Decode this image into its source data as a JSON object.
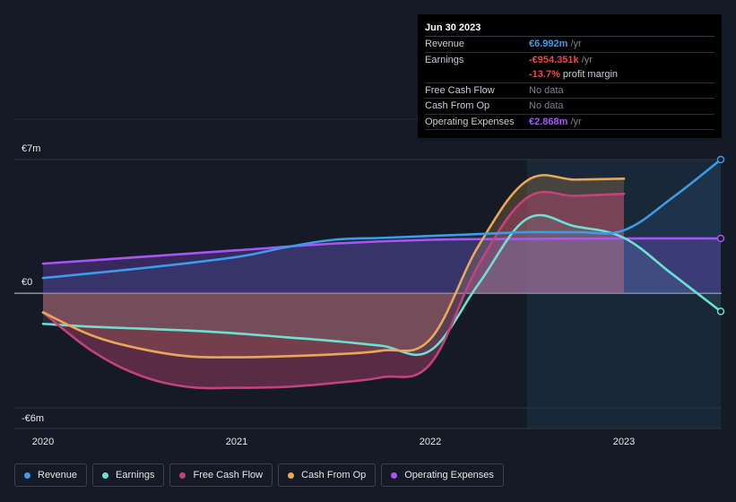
{
  "tooltip": {
    "date": "Jun 30 2023",
    "rows": [
      {
        "label": "Revenue",
        "value": "€6.992m",
        "suffix": " /yr"
      },
      {
        "label": "Earnings",
        "value": "-€954.351k",
        "suffix": " /yr"
      },
      {
        "label": "",
        "value": "-13.7%",
        "suffix": " profit margin"
      },
      {
        "label": "Free Cash Flow",
        "value": "No data",
        "suffix": ""
      },
      {
        "label": "Cash From Op",
        "value": "No data",
        "suffix": ""
      },
      {
        "label": "Operating Expenses",
        "value": "€2.868m",
        "suffix": " /yr"
      }
    ]
  },
  "legend": [
    {
      "label": "Revenue",
      "color": "#3d9be9"
    },
    {
      "label": "Earnings",
      "color": "#6ee0d0"
    },
    {
      "label": "Free Cash Flow",
      "color": "#c2437b"
    },
    {
      "label": "Cash From Op",
      "color": "#e8a857"
    },
    {
      "label": "Operating Expenses",
      "color": "#a855f7"
    }
  ],
  "chart_data": {
    "type": "area",
    "title": "",
    "xlabel": "",
    "ylabel": "",
    "y_tick_labels": [
      "€7m",
      "€0",
      "-€6m"
    ],
    "y_ticks": [
      7,
      0,
      -6
    ],
    "ylim": [
      -6,
      7
    ],
    "xlim": [
      2020.0,
      2023.5
    ],
    "x_tick_labels": [
      "2020",
      "2021",
      "2022",
      "2023"
    ],
    "x_ticks": [
      2020,
      2021,
      2022,
      2023
    ],
    "highlight_from": 2022.5,
    "series": [
      {
        "name": "Revenue",
        "color": "#3d9be9",
        "x": [
          2020.0,
          2020.5,
          2021.0,
          2021.25,
          2021.5,
          2021.75,
          2022.0,
          2022.25,
          2022.5,
          2022.75,
          2023.0,
          2023.25,
          2023.5
        ],
        "values": [
          0.8,
          1.3,
          1.9,
          2.4,
          2.8,
          2.9,
          3.0,
          3.1,
          3.2,
          3.2,
          3.3,
          5.0,
          7.0
        ]
      },
      {
        "name": "Earnings",
        "color": "#6ee0d0",
        "x": [
          2020.0,
          2020.25,
          2020.5,
          2020.75,
          2021.0,
          2021.25,
          2021.5,
          2021.75,
          2022.0,
          2022.25,
          2022.5,
          2022.75,
          2023.0,
          2023.25,
          2023.5
        ],
        "values": [
          -1.6,
          -1.75,
          -1.85,
          -1.95,
          -2.1,
          -2.3,
          -2.5,
          -2.75,
          -3.0,
          0.5,
          3.9,
          3.5,
          2.9,
          1.0,
          -0.95
        ]
      },
      {
        "name": "Free Cash Flow",
        "color": "#c2437b",
        "x": [
          2020.0,
          2020.25,
          2020.5,
          2020.75,
          2021.0,
          2021.25,
          2021.5,
          2021.75,
          2022.0,
          2022.25,
          2022.5,
          2022.75,
          2023.0
        ],
        "values": [
          -1.0,
          -3.0,
          -4.3,
          -4.9,
          -4.95,
          -4.9,
          -4.7,
          -4.4,
          -3.7,
          1.5,
          5.0,
          5.1,
          5.2
        ]
      },
      {
        "name": "Cash From Op",
        "color": "#e8a857",
        "x": [
          2020.0,
          2020.25,
          2020.5,
          2020.75,
          2021.0,
          2021.25,
          2021.5,
          2021.75,
          2022.0,
          2022.25,
          2022.5,
          2022.75,
          2023.0
        ],
        "values": [
          -1.0,
          -2.2,
          -2.9,
          -3.3,
          -3.35,
          -3.3,
          -3.2,
          -3.0,
          -2.4,
          2.5,
          5.9,
          5.95,
          6.0
        ]
      },
      {
        "name": "Operating Expenses",
        "color": "#a855f7",
        "x": [
          2020.0,
          2020.5,
          2021.0,
          2021.5,
          2022.0,
          2022.5,
          2023.0,
          2023.5
        ],
        "values": [
          1.55,
          1.9,
          2.25,
          2.6,
          2.8,
          2.85,
          2.87,
          2.87
        ]
      }
    ]
  }
}
